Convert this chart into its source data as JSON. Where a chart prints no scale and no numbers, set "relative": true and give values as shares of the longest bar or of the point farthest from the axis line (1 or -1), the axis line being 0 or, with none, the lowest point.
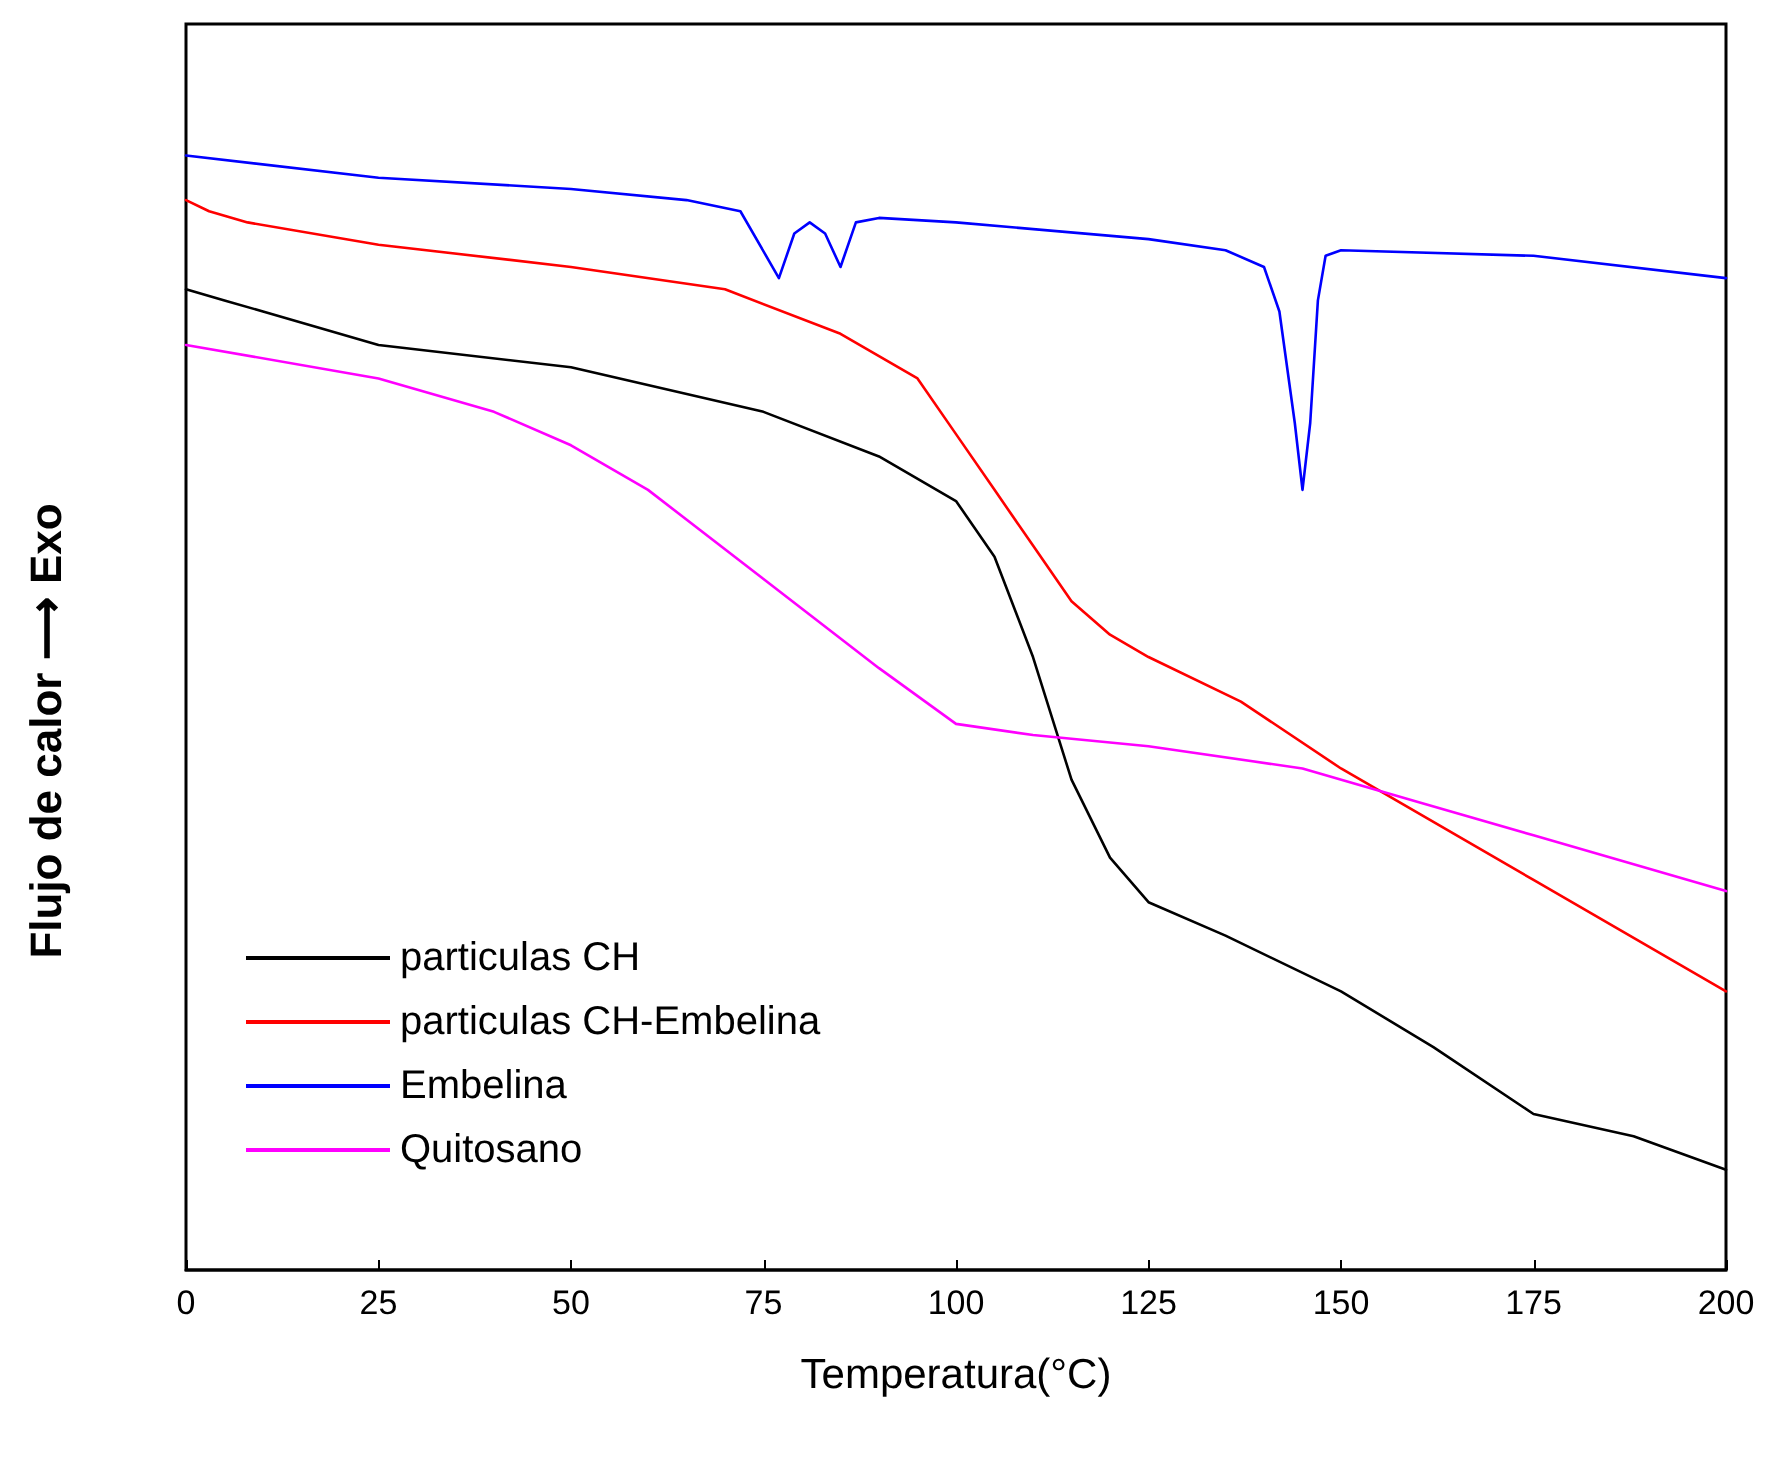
{
  "chart_data": {
    "type": "line",
    "xlabel": "Temperatura(°C)",
    "ylabel": "Flujo de calor ⟶ Exo",
    "relative": true,
    "xlim": [
      0,
      200
    ],
    "xticks": [
      0,
      25,
      50,
      75,
      100,
      125,
      150,
      175,
      200
    ],
    "grid": false,
    "legend": "bottom left",
    "marker": "none",
    "line_style": "solid",
    "series": [
      {
        "name": "particulas CH",
        "color": "#000000",
        "x": [
          0,
          5,
          10,
          25,
          50,
          75,
          90,
          100,
          105,
          110,
          115,
          120,
          125,
          135,
          150,
          162,
          175,
          188,
          200
        ],
        "values": [
          0.88,
          0.87,
          0.86,
          0.83,
          0.81,
          0.77,
          0.73,
          0.69,
          0.64,
          0.55,
          0.44,
          0.37,
          0.33,
          0.3,
          0.25,
          0.2,
          0.14,
          0.12,
          0.09
        ]
      },
      {
        "name": "particulas CH-Embelina",
        "color": "#ff0000",
        "x": [
          0,
          3,
          8,
          25,
          50,
          70,
          85,
          95,
          100,
          105,
          110,
          115,
          120,
          125,
          137,
          150,
          175,
          200
        ],
        "values": [
          0.96,
          0.95,
          0.94,
          0.92,
          0.9,
          0.88,
          0.84,
          0.8,
          0.75,
          0.7,
          0.65,
          0.6,
          0.57,
          0.55,
          0.51,
          0.45,
          0.35,
          0.25
        ]
      },
      {
        "name": "Embelina",
        "color": "#0000ff",
        "x": [
          0,
          25,
          50,
          65,
          72,
          77,
          79,
          81,
          83,
          85,
          87,
          90,
          100,
          125,
          135,
          140,
          142,
          144,
          145,
          146,
          147,
          148,
          150,
          175,
          200
        ],
        "values": [
          1.0,
          0.98,
          0.97,
          0.96,
          0.95,
          0.89,
          0.93,
          0.94,
          0.93,
          0.9,
          0.94,
          0.944,
          0.94,
          0.925,
          0.915,
          0.9,
          0.86,
          0.76,
          0.7,
          0.76,
          0.87,
          0.91,
          0.915,
          0.91,
          0.89
        ]
      },
      {
        "name": "Quitosano",
        "color": "#ff00ff",
        "x": [
          0,
          25,
          40,
          50,
          60,
          75,
          90,
          100,
          110,
          125,
          145,
          160,
          175,
          200
        ],
        "values": [
          0.83,
          0.8,
          0.77,
          0.74,
          0.7,
          0.62,
          0.54,
          0.49,
          0.48,
          0.47,
          0.45,
          0.42,
          0.39,
          0.34
        ]
      }
    ]
  }
}
